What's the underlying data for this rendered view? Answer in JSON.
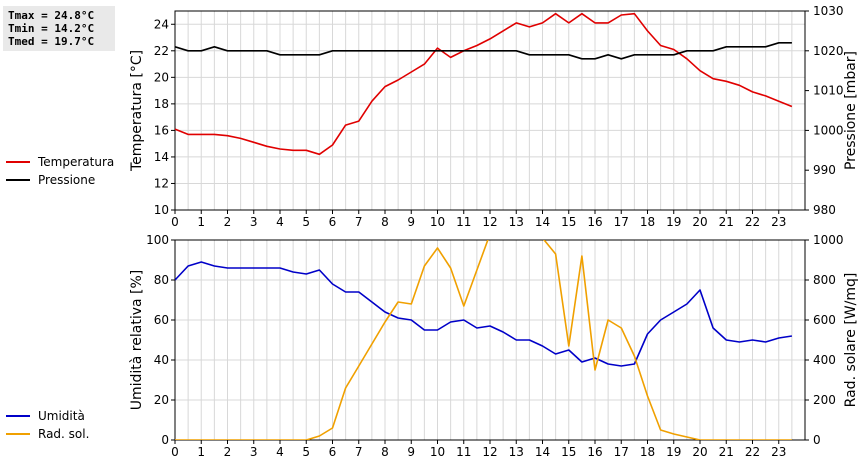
{
  "stats": {
    "tmax": "Tmax = 24.8°C",
    "tmin": "Tmin = 14.2°C",
    "tmed": "Tmed = 19.7°C"
  },
  "chart_data": [
    {
      "type": "line",
      "x_ticks": [
        "0",
        "1",
        "2",
        "3",
        "4",
        "5",
        "6",
        "7",
        "8",
        "9",
        "10",
        "11",
        "12",
        "13",
        "14",
        "15",
        "16",
        "17",
        "18",
        "19",
        "20",
        "21",
        "22",
        "23"
      ],
      "xlim": [
        0,
        24
      ],
      "y_left": {
        "label": "Temperatura [°C]",
        "lim": [
          10,
          25
        ],
        "ticks": [
          "10",
          "12",
          "14",
          "16",
          "18",
          "20",
          "22",
          "24"
        ]
      },
      "y_right": {
        "label": "Pressione [mbar]",
        "lim": [
          980,
          1030
        ],
        "ticks": [
          "980",
          "990",
          "1000",
          "1010",
          "1020",
          "1030"
        ]
      },
      "grid": true,
      "series": [
        {
          "name": "Temperatura",
          "axis": "left",
          "color": "#e00000",
          "x": [
            0,
            0.5,
            1,
            1.5,
            2,
            2.5,
            3,
            3.5,
            4,
            4.5,
            5,
            5.5,
            6,
            6.5,
            7,
            7.5,
            8,
            8.5,
            9,
            9.5,
            10,
            10.5,
            11,
            11.5,
            12,
            12.5,
            13,
            13.5,
            14,
            14.5,
            15,
            15.5,
            16,
            16.5,
            17,
            17.5,
            18,
            18.5,
            19,
            19.5,
            20,
            20.5,
            21,
            21.5,
            22,
            22.5,
            23,
            23.5
          ],
          "y": [
            16.1,
            15.7,
            15.7,
            15.7,
            15.6,
            15.4,
            15.1,
            14.8,
            14.6,
            14.5,
            14.5,
            14.2,
            14.9,
            16.4,
            16.7,
            18.2,
            19.3,
            19.8,
            20.4,
            21.0,
            22.2,
            21.5,
            22.0,
            22.4,
            22.9,
            23.5,
            24.1,
            23.8,
            24.1,
            24.8,
            24.1,
            24.8,
            24.1,
            24.1,
            24.7,
            24.8,
            23.5,
            22.4,
            22.1,
            21.4,
            20.5,
            19.9,
            19.7,
            19.4,
            18.9,
            18.6,
            18.2,
            17.8
          ]
        },
        {
          "name": "Pressione",
          "axis": "right",
          "color": "#000000",
          "x": [
            0,
            0.5,
            1,
            1.5,
            2,
            2.5,
            3,
            3.5,
            4,
            4.5,
            5,
            5.5,
            6,
            6.5,
            7,
            7.5,
            8,
            8.5,
            9,
            9.5,
            10,
            10.5,
            11,
            11.5,
            12,
            12.5,
            13,
            13.5,
            14,
            14.5,
            15,
            15.5,
            16,
            16.5,
            17,
            17.5,
            18,
            18.5,
            19,
            19.5,
            20,
            20.5,
            21,
            21.5,
            22,
            22.5,
            23,
            23.5
          ],
          "y": [
            1021,
            1020,
            1020,
            1021,
            1020,
            1020,
            1020,
            1020,
            1019,
            1019,
            1019,
            1019,
            1020,
            1020,
            1020,
            1020,
            1020,
            1020,
            1020,
            1020,
            1020,
            1020,
            1020,
            1020,
            1020,
            1020,
            1020,
            1019,
            1019,
            1019,
            1019,
            1018,
            1018,
            1019,
            1018,
            1019,
            1019,
            1019,
            1019,
            1020,
            1020,
            1020,
            1021,
            1021,
            1021,
            1021,
            1022,
            1022
          ]
        }
      ]
    },
    {
      "type": "line",
      "x_ticks": [
        "0",
        "1",
        "2",
        "3",
        "4",
        "5",
        "6",
        "7",
        "8",
        "9",
        "10",
        "11",
        "12",
        "13",
        "14",
        "15",
        "16",
        "17",
        "18",
        "19",
        "20",
        "21",
        "22",
        "23"
      ],
      "xlim": [
        0,
        24
      ],
      "y_left": {
        "label": "Umidità relativa [%]",
        "lim": [
          0,
          100
        ],
        "ticks": [
          "0",
          "20",
          "40",
          "60",
          "80",
          "100"
        ]
      },
      "y_right": {
        "label": "Rad. solare [W/mq]",
        "lim": [
          0,
          1000
        ],
        "ticks": [
          "0",
          "200",
          "400",
          "600",
          "800",
          "1000"
        ]
      },
      "grid": true,
      "series": [
        {
          "name": "Umidità",
          "axis": "left",
          "color": "#0000c8",
          "x": [
            0,
            0.5,
            1,
            1.5,
            2,
            2.5,
            3,
            3.5,
            4,
            4.5,
            5,
            5.5,
            6,
            6.5,
            7,
            7.5,
            8,
            8.5,
            9,
            9.5,
            10,
            10.5,
            11,
            11.5,
            12,
            12.5,
            13,
            13.5,
            14,
            14.5,
            15,
            15.5,
            16,
            16.5,
            17,
            17.5,
            18,
            18.5,
            19,
            19.5,
            20,
            20.5,
            21,
            21.5,
            22,
            22.5,
            23,
            23.5
          ],
          "y": [
            80,
            87,
            89,
            87,
            86,
            86,
            86,
            86,
            86,
            84,
            83,
            85,
            78,
            74,
            74,
            69,
            64,
            61,
            60,
            55,
            55,
            59,
            60,
            56,
            57,
            54,
            50,
            50,
            47,
            43,
            45,
            39,
            41,
            38,
            37,
            38,
            53,
            60,
            64,
            68,
            75,
            56,
            50,
            49,
            50,
            49,
            51,
            52
          ]
        },
        {
          "name": "Rad. sol.",
          "axis": "right",
          "color": "#f0a000",
          "x": [
            0,
            0.5,
            1,
            1.5,
            2,
            2.5,
            3,
            3.5,
            4,
            4.5,
            5,
            5.5,
            6,
            6.5,
            7,
            7.5,
            8,
            8.5,
            9,
            9.5,
            10,
            10.5,
            11,
            11.5,
            12,
            12.5,
            13,
            13.5,
            14,
            14.5,
            15,
            15.5,
            16,
            16.5,
            17,
            17.5,
            18,
            18.5,
            19,
            19.5,
            20,
            20.5,
            21,
            21.5,
            22,
            22.5,
            23,
            23.5
          ],
          "y": [
            0,
            0,
            0,
            0,
            0,
            0,
            0,
            0,
            0,
            0,
            0,
            20,
            60,
            260,
            370,
            480,
            590,
            690,
            680,
            870,
            960,
            860,
            670,
            850,
            1030,
            1040,
            1050,
            1045,
            1010,
            930,
            470,
            920,
            350,
            600,
            560,
            420,
            220,
            50,
            30,
            15,
            0,
            0,
            0,
            0,
            0,
            0,
            0,
            0
          ]
        }
      ]
    }
  ]
}
